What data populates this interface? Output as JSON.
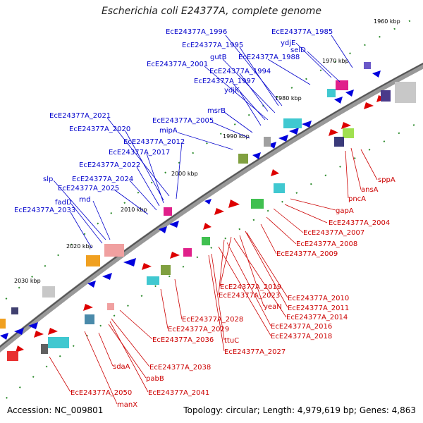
{
  "title": "Escherichia coli E24377A, complete genome",
  "footer": {
    "accession": "Accession: NC_009801",
    "summary": "Topology: circular; Length: 4,979,619 bp; Genes: 4,863"
  },
  "colors": {
    "forward": "#0000cc",
    "reverse": "#cc0000",
    "backbone": "#777777"
  },
  "kbp_ticks": [
    "1960 kbp",
    "1970 kbp",
    "1980 kbp",
    "1990 kbp",
    "2000 kbp",
    "2010 kbp",
    "2020 kbp",
    "2030 kbp"
  ],
  "forward_labels": [
    "EcE24377A_1985",
    "EcE24377A_1996",
    "ydjE",
    "EcE24377A_1995",
    "selD",
    "gutB",
    "EcE24377A_1988",
    "EcE24377A_2001",
    "EcE24377A_1994",
    "EcE24377A_1997",
    "ydjK",
    "msrB",
    "EcE24377A_2005",
    "EcE24377A_2021",
    "EcE24377A_2020",
    "mipA",
    "EcE24377A_2012",
    "EcE24377A_2017",
    "EcE24377A_2022",
    "slp",
    "EcE24377A_2024",
    "EcE24377A_2025",
    "rnd",
    "fadD",
    "EcE24377A_2033"
  ],
  "reverse_labels": [
    "sppA",
    "ansA",
    "pncA",
    "gapA",
    "EcE24377A_2004",
    "EcE24377A_2007",
    "EcE24377A_2008",
    "EcE24377A_2009",
    "EcE24377A_2019",
    "EcE24377A_2023",
    "EcE24377A_2010",
    "yeaN",
    "EcE24377A_2011",
    "EcE24377A_2014",
    "EcE24377A_2016",
    "EcE24377A_2018",
    "EcE24377A_2028",
    "EcE24377A_2029",
    "ttuC",
    "EcE24377A_2036",
    "EcE24377A_2027",
    "EcE24377A_2038",
    "sdaA",
    "pabB",
    "EcE24377A_2041",
    "EcE24377A_2050",
    "manX"
  ]
}
